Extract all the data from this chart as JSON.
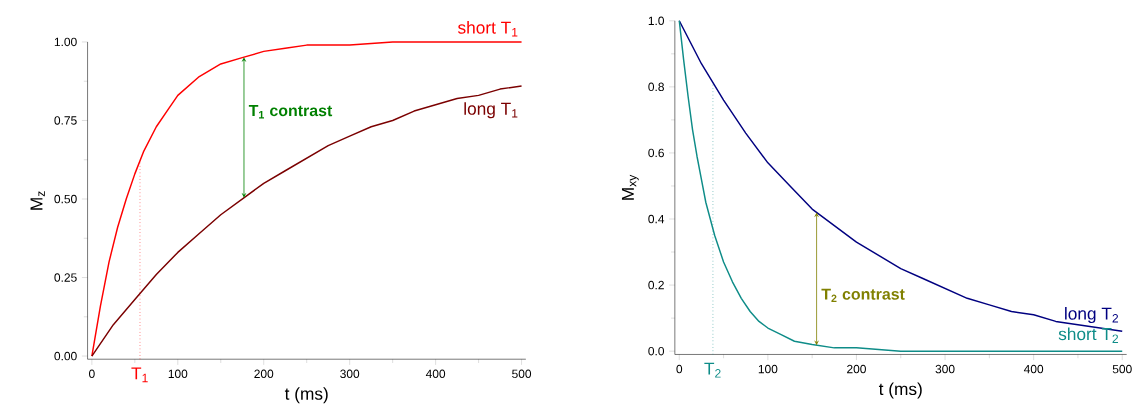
{
  "chart_data": [
    {
      "type": "line",
      "xlabel": "t (ms)",
      "ylabel": "M$_{z}$",
      "series": [
        {
          "name": "short T$_{1}$",
          "color": "#ff0000",
          "x": [
            0,
            10,
            20,
            30,
            40,
            50,
            60,
            75,
            90,
            100,
            125,
            150,
            175,
            200,
            225,
            250,
            300,
            350,
            400,
            450,
            500
          ],
          "values": [
            0,
            0.16,
            0.3,
            0.41,
            0.5,
            0.58,
            0.65,
            0.73,
            0.79,
            0.83,
            0.89,
            0.93,
            0.95,
            0.97,
            0.98,
            0.99,
            0.99,
            1.0,
            1.0,
            1.0,
            1.0
          ]
        },
        {
          "name": "long T$_{1}$",
          "color": "#7b0000",
          "x": [
            0,
            25,
            50,
            75,
            100,
            125,
            150,
            175,
            200,
            225,
            250,
            275,
            300,
            325,
            350,
            375,
            400,
            425,
            450,
            475,
            500
          ],
          "values": [
            0,
            0.1,
            0.18,
            0.26,
            0.33,
            0.39,
            0.45,
            0.5,
            0.55,
            0.59,
            0.63,
            0.67,
            0.7,
            0.73,
            0.75,
            0.78,
            0.8,
            0.82,
            0.83,
            0.85,
            0.86
          ]
        }
      ],
      "xlim": [
        -5,
        505
      ],
      "xticks": [
        0,
        100,
        200,
        300,
        400,
        500
      ],
      "ylim": [
        -0.01,
        1.0
      ],
      "yticks": [
        {
          "value": 0,
          "label": "0.00"
        },
        {
          "value": 0.25,
          "label": "0.25"
        },
        {
          "value": 0.5,
          "label": "0.50"
        },
        {
          "value": 0.75,
          "label": "0.75"
        },
        {
          "value": 1.0,
          "label": "1.00"
        }
      ],
      "ref_lines": [
        {
          "axis": "x",
          "value": 56,
          "label": "T$_{1}$",
          "color": "#ff0000",
          "line_style": "dotted"
        }
      ],
      "annotations": [
        "T$_{1}$ contrast"
      ],
      "grid": false,
      "marker": "none",
      "line_style": "solid"
    },
    {
      "type": "line",
      "xlabel": "t (ms)",
      "ylabel": "M$_{xy}$",
      "series": [
        {
          "name": "long T$_{2}$",
          "color": "#000080",
          "x": [
            0,
            25,
            50,
            75,
            100,
            125,
            150,
            175,
            200,
            225,
            250,
            275,
            300,
            325,
            350,
            375,
            400,
            425,
            450,
            475,
            500
          ],
          "values": [
            1.0,
            0.87,
            0.76,
            0.66,
            0.57,
            0.5,
            0.43,
            0.38,
            0.33,
            0.29,
            0.25,
            0.22,
            0.19,
            0.16,
            0.14,
            0.12,
            0.11,
            0.09,
            0.08,
            0.07,
            0.06
          ]
        },
        {
          "name": "short T$_{2}$",
          "color": "#0e8c88",
          "x": [
            0,
            5,
            10,
            15,
            20,
            25,
            30,
            40,
            50,
            60,
            70,
            80,
            90,
            100,
            115,
            130,
            150,
            175,
            200,
            250,
            300,
            400,
            500
          ],
          "values": [
            1.0,
            0.88,
            0.77,
            0.67,
            0.59,
            0.52,
            0.45,
            0.35,
            0.27,
            0.21,
            0.16,
            0.12,
            0.09,
            0.07,
            0.05,
            0.03,
            0.02,
            0.01,
            0.01,
            0.0,
            0.0,
            0.0,
            0.0
          ]
        }
      ],
      "xlim": [
        -5,
        505
      ],
      "xticks": [
        0,
        100,
        200,
        300,
        400,
        500
      ],
      "ylim": [
        -0.01,
        1.0
      ],
      "yticks": [
        {
          "value": 0,
          "label": "0.0"
        },
        {
          "value": 0.2,
          "label": "0.2"
        },
        {
          "value": 0.4,
          "label": "0.4"
        },
        {
          "value": 0.6,
          "label": "0.6"
        },
        {
          "value": 0.8,
          "label": "0.8"
        },
        {
          "value": 1.0,
          "label": "1.0"
        }
      ],
      "ref_lines": [
        {
          "axis": "x",
          "value": 38,
          "label": "T$_{2}$",
          "color": "#0e8c88",
          "line_style": "dotted"
        }
      ],
      "annotations": [
        "T$_{2}$ contrast"
      ],
      "grid": false,
      "marker": "none",
      "line_style": "solid"
    }
  ]
}
